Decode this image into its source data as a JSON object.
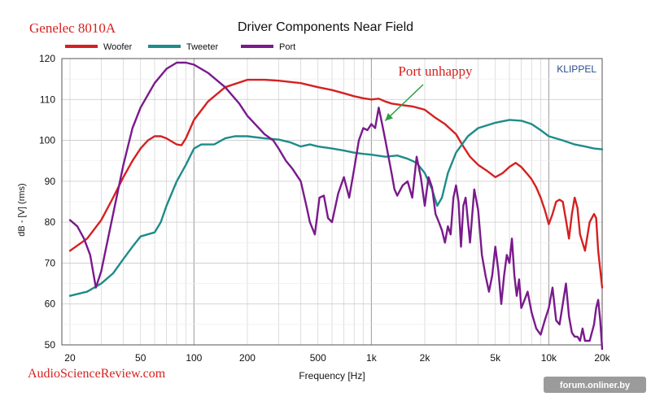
{
  "header": {
    "product": "Genelec 8010A",
    "source": "AudioScienceReview.com",
    "watermark": "forum.onliner.by"
  },
  "colors": {
    "woofer": "#d62020",
    "tweeter": "#1e8c8a",
    "port": "#7a1a8c",
    "product_text": "#d62020",
    "annotation_text": "#d62020",
    "annotation_arrow": "#2ea044",
    "klippel": "#2a4a90"
  },
  "chart_data": {
    "type": "line",
    "title": "Driver Components Near Field",
    "xlabel": "Frequency [Hz]",
    "ylabel": "dB - [V] (rms)",
    "x_scale": "log",
    "xlim": [
      18,
      20000
    ],
    "ylim": [
      50,
      120
    ],
    "grid": true,
    "legend_position": "top-left",
    "brand_label": "KLIPPEL",
    "x_ticks": [
      {
        "value": 20,
        "label": "20"
      },
      {
        "value": 50,
        "label": "50"
      },
      {
        "value": 100,
        "label": "100"
      },
      {
        "value": 200,
        "label": "200"
      },
      {
        "value": 500,
        "label": "500"
      },
      {
        "value": 1000,
        "label": "1k"
      },
      {
        "value": 2000,
        "label": "2k"
      },
      {
        "value": 5000,
        "label": "5k"
      },
      {
        "value": 10000,
        "label": "10k"
      },
      {
        "value": 20000,
        "label": "20k"
      }
    ],
    "y_ticks": [
      50,
      60,
      70,
      80,
      90,
      100,
      110,
      120
    ],
    "annotation": {
      "text": "Port unhappy",
      "target": {
        "x": 1100,
        "y": 106
      }
    },
    "series": [
      {
        "name": "Woofer",
        "points": [
          [
            20,
            73
          ],
          [
            25,
            76
          ],
          [
            30,
            80.5
          ],
          [
            35,
            86
          ],
          [
            40,
            91
          ],
          [
            45,
            95
          ],
          [
            50,
            98
          ],
          [
            55,
            100
          ],
          [
            60,
            101
          ],
          [
            65,
            101
          ],
          [
            70,
            100.5
          ],
          [
            80,
            99
          ],
          [
            85,
            98.8
          ],
          [
            90,
            100.5
          ],
          [
            100,
            105
          ],
          [
            120,
            109.5
          ],
          [
            150,
            113
          ],
          [
            200,
            114.8
          ],
          [
            250,
            114.8
          ],
          [
            300,
            114.6
          ],
          [
            400,
            114
          ],
          [
            500,
            113
          ],
          [
            600,
            112.3
          ],
          [
            700,
            111.5
          ],
          [
            800,
            110.8
          ],
          [
            900,
            110.3
          ],
          [
            1000,
            110
          ],
          [
            1100,
            110.2
          ],
          [
            1200,
            109.5
          ],
          [
            1300,
            109
          ],
          [
            1500,
            108.6
          ],
          [
            1700,
            108.3
          ],
          [
            2000,
            107.5
          ],
          [
            2300,
            105.5
          ],
          [
            2600,
            104
          ],
          [
            3000,
            101.5
          ],
          [
            3300,
            98.5
          ],
          [
            3600,
            96
          ],
          [
            4000,
            94
          ],
          [
            4500,
            92.5
          ],
          [
            5000,
            91
          ],
          [
            5500,
            92
          ],
          [
            6000,
            93.5
          ],
          [
            6500,
            94.5
          ],
          [
            7000,
            93.5
          ],
          [
            7500,
            92
          ],
          [
            8000,
            90.5
          ],
          [
            8500,
            88.5
          ],
          [
            9000,
            86
          ],
          [
            9500,
            83
          ],
          [
            10000,
            79.5
          ],
          [
            10500,
            82
          ],
          [
            11000,
            85
          ],
          [
            11500,
            85.5
          ],
          [
            12000,
            85
          ],
          [
            12500,
            80.5
          ],
          [
            13000,
            76
          ],
          [
            13500,
            82
          ],
          [
            14000,
            86
          ],
          [
            14500,
            83.5
          ],
          [
            15000,
            77
          ],
          [
            16000,
            73
          ],
          [
            17000,
            80
          ],
          [
            18000,
            82
          ],
          [
            18500,
            81
          ],
          [
            19000,
            73
          ],
          [
            20000,
            64
          ]
        ]
      },
      {
        "name": "Tweeter",
        "points": [
          [
            20,
            62
          ],
          [
            25,
            63
          ],
          [
            30,
            65
          ],
          [
            35,
            67.5
          ],
          [
            40,
            71
          ],
          [
            45,
            74
          ],
          [
            50,
            76.5
          ],
          [
            60,
            77.5
          ],
          [
            65,
            80
          ],
          [
            70,
            84
          ],
          [
            80,
            90
          ],
          [
            90,
            94
          ],
          [
            100,
            98
          ],
          [
            110,
            99
          ],
          [
            130,
            99
          ],
          [
            150,
            100.5
          ],
          [
            170,
            101
          ],
          [
            200,
            101
          ],
          [
            250,
            100.5
          ],
          [
            300,
            100.2
          ],
          [
            350,
            99.5
          ],
          [
            400,
            98.5
          ],
          [
            450,
            99
          ],
          [
            500,
            98.5
          ],
          [
            600,
            98
          ],
          [
            700,
            97.5
          ],
          [
            800,
            97
          ],
          [
            900,
            96.7
          ],
          [
            1000,
            96.5
          ],
          [
            1200,
            96
          ],
          [
            1400,
            96.3
          ],
          [
            1600,
            95.5
          ],
          [
            1800,
            94.5
          ],
          [
            2000,
            92
          ],
          [
            2200,
            88
          ],
          [
            2350,
            84
          ],
          [
            2500,
            86
          ],
          [
            2700,
            92
          ],
          [
            3000,
            97
          ],
          [
            3500,
            101
          ],
          [
            4000,
            103
          ],
          [
            5000,
            104.3
          ],
          [
            6000,
            105
          ],
          [
            7000,
            104.8
          ],
          [
            8000,
            104
          ],
          [
            9000,
            102.5
          ],
          [
            10000,
            101
          ],
          [
            12000,
            100
          ],
          [
            14000,
            99
          ],
          [
            16000,
            98.5
          ],
          [
            18000,
            98
          ],
          [
            20000,
            97.8
          ]
        ]
      },
      {
        "name": "Port",
        "points": [
          [
            20,
            80.5
          ],
          [
            22,
            79
          ],
          [
            24,
            76
          ],
          [
            26,
            72
          ],
          [
            28,
            64
          ],
          [
            30,
            68
          ],
          [
            35,
            82
          ],
          [
            40,
            94
          ],
          [
            45,
            103
          ],
          [
            50,
            108
          ],
          [
            60,
            114
          ],
          [
            70,
            117.5
          ],
          [
            80,
            119
          ],
          [
            90,
            119
          ],
          [
            100,
            118.5
          ],
          [
            120,
            116.5
          ],
          [
            150,
            113
          ],
          [
            180,
            109
          ],
          [
            200,
            106
          ],
          [
            250,
            101.5
          ],
          [
            280,
            100
          ],
          [
            300,
            98
          ],
          [
            330,
            95
          ],
          [
            360,
            93
          ],
          [
            400,
            90
          ],
          [
            430,
            84
          ],
          [
            450,
            80
          ],
          [
            480,
            77
          ],
          [
            510,
            86
          ],
          [
            540,
            86.5
          ],
          [
            570,
            81
          ],
          [
            600,
            80
          ],
          [
            650,
            87
          ],
          [
            700,
            91
          ],
          [
            750,
            86
          ],
          [
            800,
            93
          ],
          [
            850,
            100
          ],
          [
            900,
            103
          ],
          [
            950,
            102.5
          ],
          [
            1000,
            104
          ],
          [
            1050,
            103
          ],
          [
            1100,
            108
          ],
          [
            1150,
            104
          ],
          [
            1200,
            100
          ],
          [
            1300,
            92
          ],
          [
            1350,
            88
          ],
          [
            1400,
            86.5
          ],
          [
            1500,
            89
          ],
          [
            1600,
            90
          ],
          [
            1700,
            86
          ],
          [
            1800,
            96
          ],
          [
            1900,
            91
          ],
          [
            2000,
            84
          ],
          [
            2100,
            91
          ],
          [
            2200,
            88.5
          ],
          [
            2300,
            82
          ],
          [
            2400,
            80
          ],
          [
            2500,
            78
          ],
          [
            2600,
            75
          ],
          [
            2700,
            79
          ],
          [
            2800,
            77
          ],
          [
            2900,
            86
          ],
          [
            3000,
            89
          ],
          [
            3100,
            85
          ],
          [
            3200,
            74
          ],
          [
            3300,
            84
          ],
          [
            3400,
            86
          ],
          [
            3600,
            75
          ],
          [
            3800,
            88
          ],
          [
            4000,
            83
          ],
          [
            4200,
            72
          ],
          [
            4400,
            67
          ],
          [
            4600,
            63
          ],
          [
            4800,
            67
          ],
          [
            5000,
            74
          ],
          [
            5200,
            68
          ],
          [
            5400,
            60
          ],
          [
            5600,
            67
          ],
          [
            5800,
            72
          ],
          [
            6000,
            70
          ],
          [
            6200,
            76
          ],
          [
            6400,
            67
          ],
          [
            6600,
            62
          ],
          [
            6800,
            66
          ],
          [
            7000,
            59
          ],
          [
            7300,
            61
          ],
          [
            7600,
            63
          ],
          [
            8000,
            58
          ],
          [
            8500,
            54
          ],
          [
            9000,
            52.5
          ],
          [
            9500,
            56
          ],
          [
            10000,
            59
          ],
          [
            10500,
            64
          ],
          [
            11000,
            56
          ],
          [
            11500,
            55
          ],
          [
            12000,
            60
          ],
          [
            12500,
            65
          ],
          [
            13000,
            57
          ],
          [
            13500,
            53
          ],
          [
            14000,
            52
          ],
          [
            14500,
            52
          ],
          [
            15000,
            51
          ],
          [
            15500,
            54
          ],
          [
            16000,
            51
          ],
          [
            17000,
            51
          ],
          [
            18000,
            55
          ],
          [
            18500,
            59
          ],
          [
            19000,
            61
          ],
          [
            19500,
            56
          ],
          [
            20000,
            49
          ]
        ]
      }
    ]
  }
}
